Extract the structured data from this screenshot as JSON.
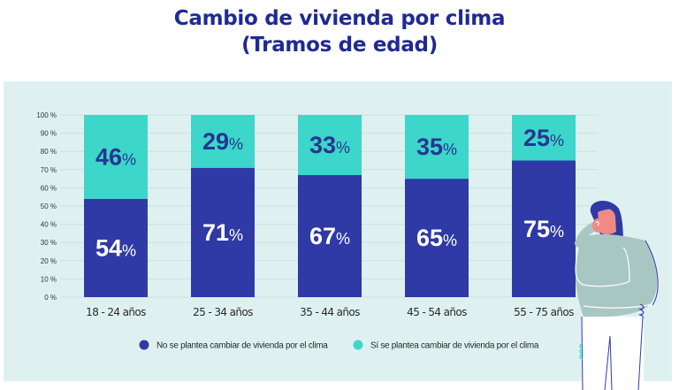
{
  "chart_data": {
    "type": "bar",
    "stacked": true,
    "title": "Cambio de vivienda por clima",
    "subtitle": "(Tramos de edad)",
    "xlabel": "",
    "ylabel": "",
    "ylim": [
      0,
      100
    ],
    "yticks": [
      0,
      10,
      20,
      30,
      40,
      50,
      60,
      70,
      80,
      90,
      100
    ],
    "ytick_suffix": " %",
    "grid": true,
    "categories": [
      "18 - 24 años",
      "25 - 34 años",
      "35 - 44 años",
      "45 - 54 años",
      "55 - 75 años"
    ],
    "series": [
      {
        "name": "No se plantea cambiar de vivienda por el clima",
        "color": "#2f3aa6",
        "label_color": "#ffffff",
        "values": [
          54,
          71,
          67,
          65,
          75
        ]
      },
      {
        "name": "Sí se plantea cambiar de vivienda por el clima",
        "color": "#3cd6cb",
        "label_color": "#27358f",
        "values": [
          46,
          29,
          33,
          35,
          25
        ]
      }
    ],
    "legend": "bottom-center",
    "data_label_suffix": "%"
  },
  "colors": {
    "title": "#1f2a93",
    "panel_background": "#def1f0",
    "gridline": "#c9e1e0"
  },
  "illustration": "woman-thinking-illustration"
}
